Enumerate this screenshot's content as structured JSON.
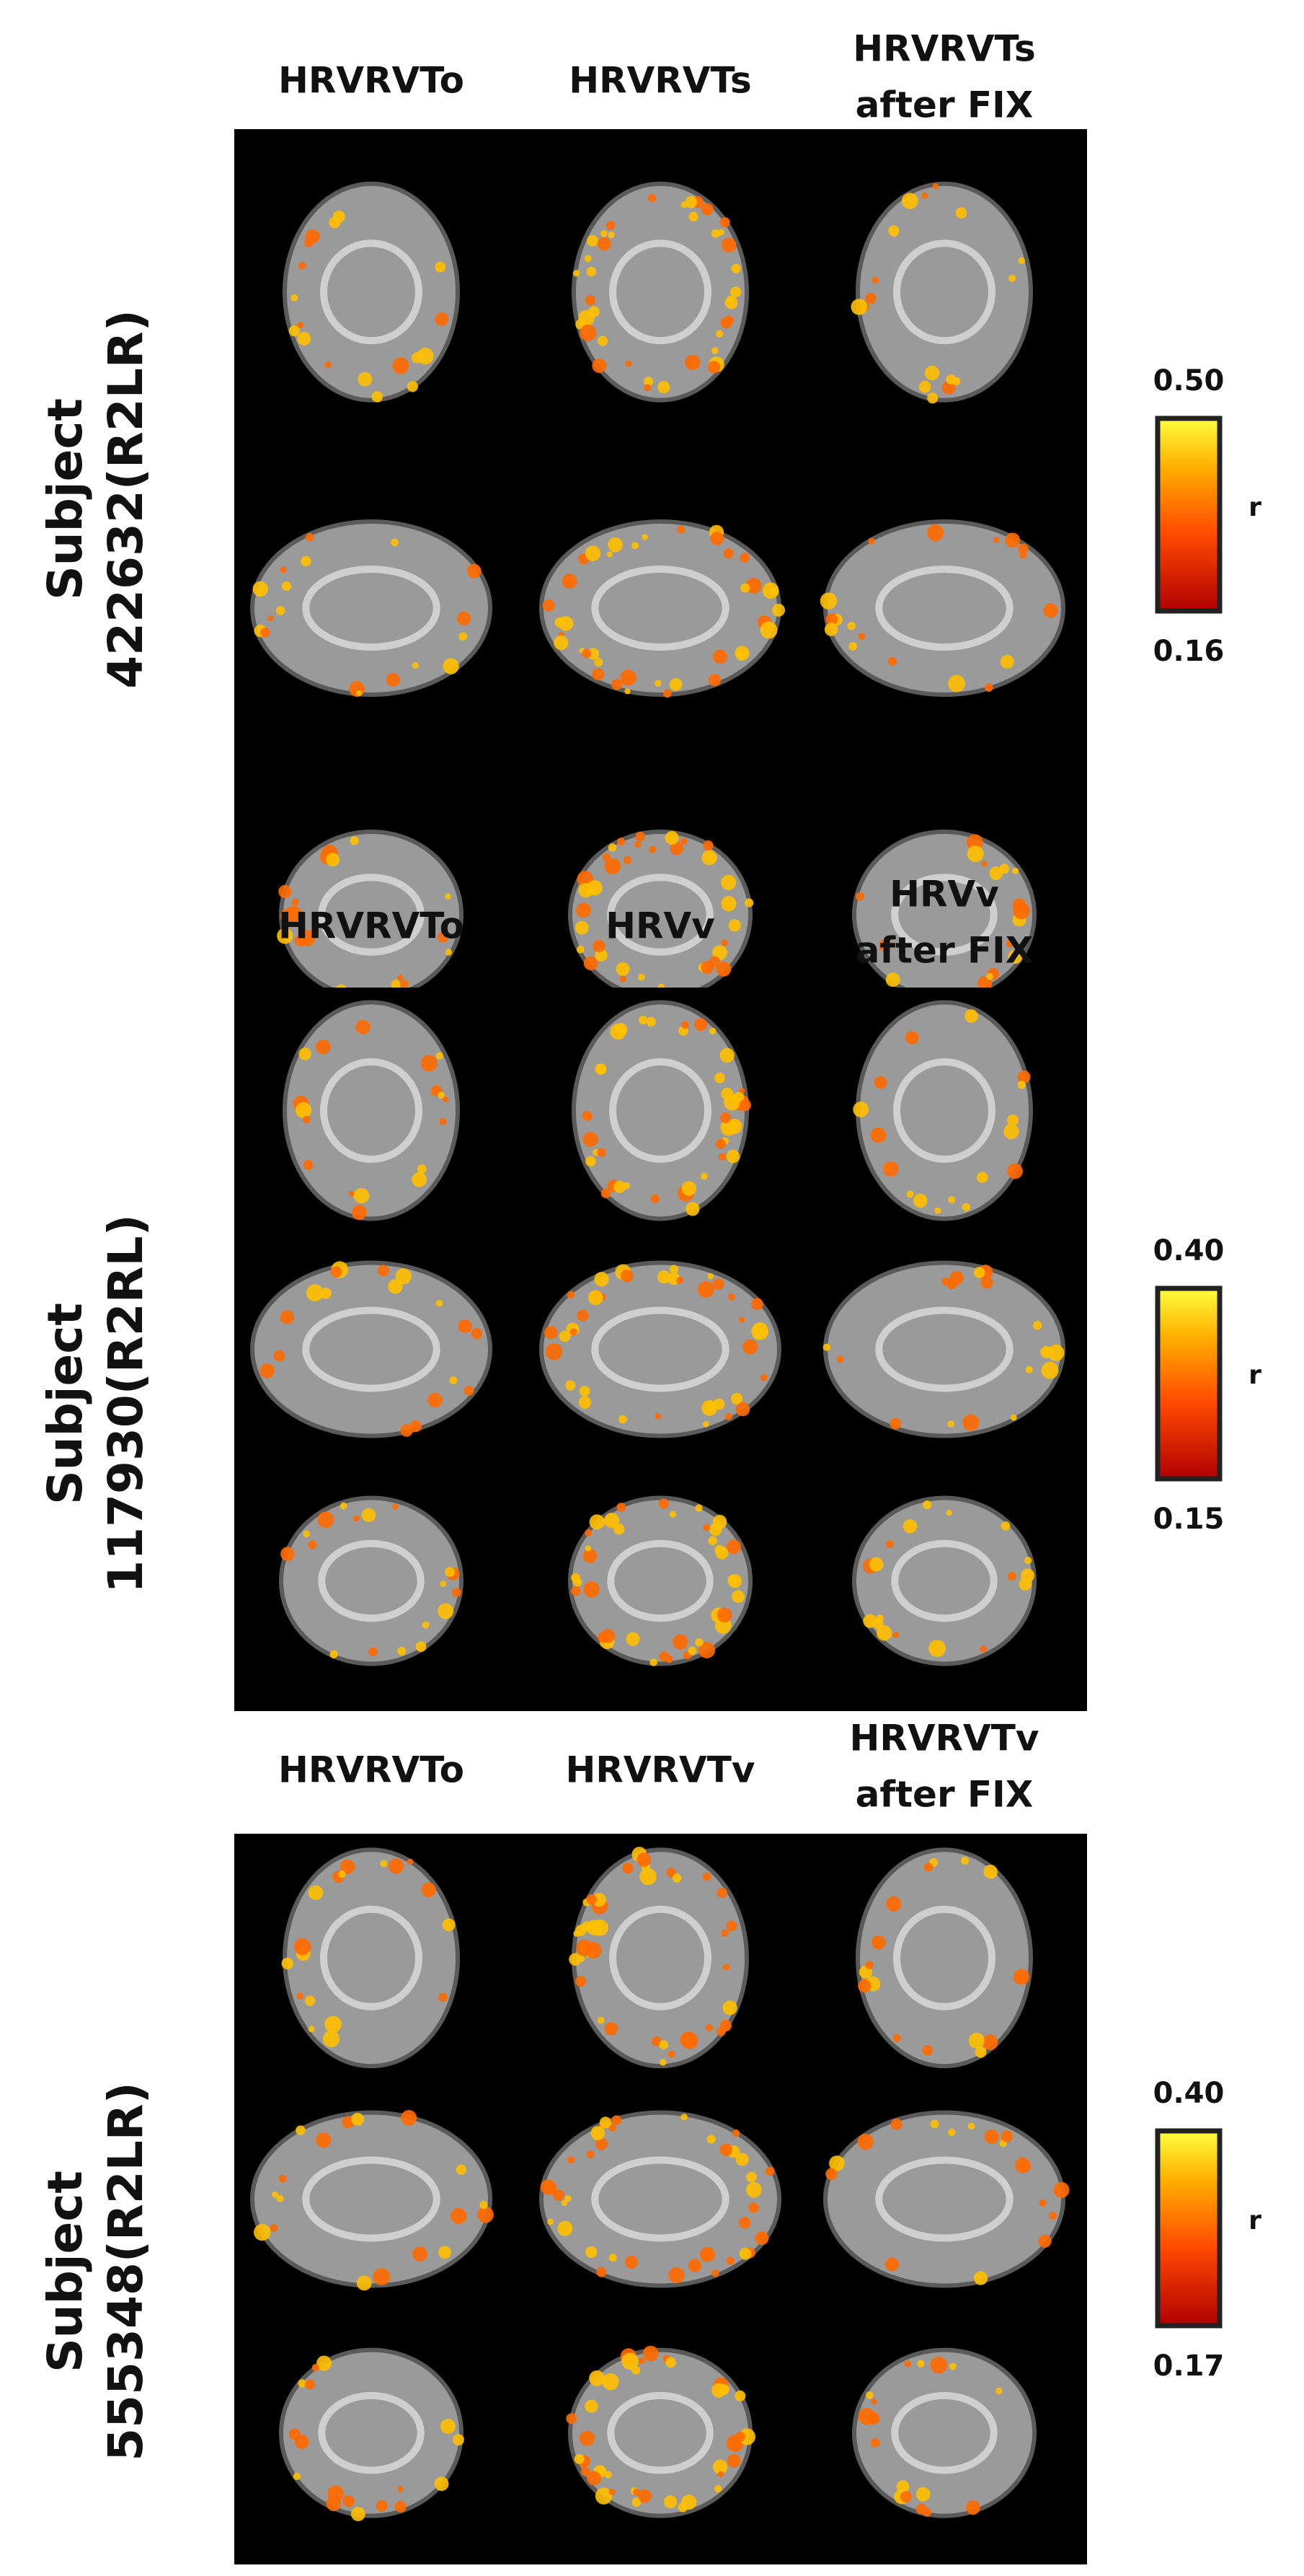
{
  "panels": [
    {
      "subject": [
        "Subject",
        "422632(R2LR)"
      ],
      "columns": [
        [
          "HRVRVTo"
        ],
        [
          "HRVRVTs"
        ],
        [
          "HRVRVTs",
          "after FIX"
        ]
      ],
      "colorbar": {
        "max": "0.50",
        "min": "0.16",
        "label": "r"
      }
    },
    {
      "subject": [
        "Subject",
        "117930(R2RL)"
      ],
      "columns": [
        [
          "HRVRVTo"
        ],
        [
          "HRVv"
        ],
        [
          "HRVv",
          "after FIX"
        ]
      ],
      "colorbar": {
        "max": "0.40",
        "min": "0.15",
        "label": "r"
      }
    },
    {
      "subject": [
        "Subject",
        "555348(R2LR)"
      ],
      "columns": [
        [
          "HRVRVTo"
        ],
        [
          "HRVRVTv"
        ],
        [
          "HRVRVTv",
          "after FIX"
        ]
      ],
      "colorbar": {
        "max": "0.40",
        "min": "0.17",
        "label": "r"
      }
    }
  ]
}
